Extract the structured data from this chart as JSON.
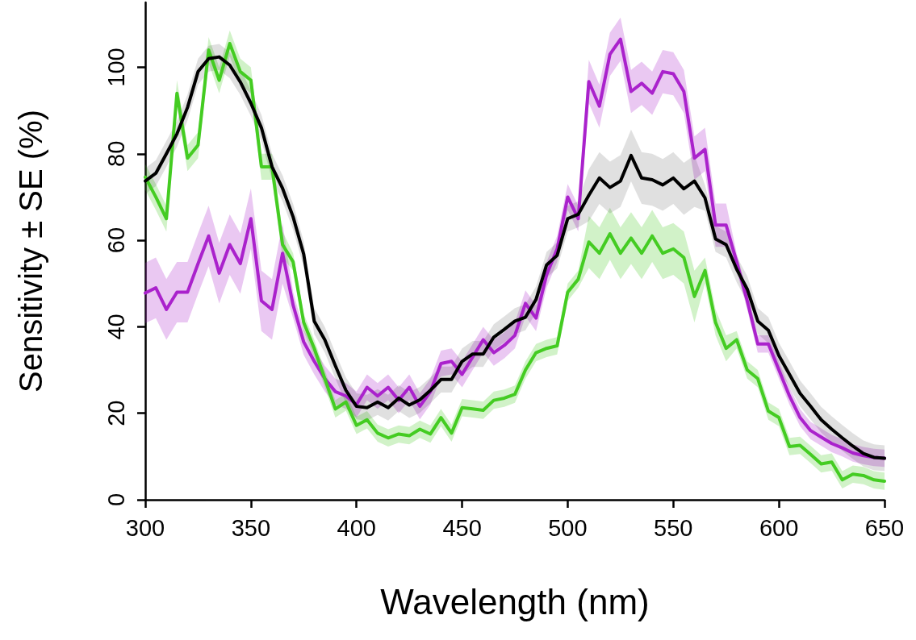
{
  "chart_data": {
    "type": "line",
    "xlabel": "Wavelength (nm)",
    "ylabel": "Sensitivity ± SE (%)",
    "x": [
      300,
      305,
      310,
      315,
      320,
      325,
      330,
      335,
      340,
      345,
      350,
      355,
      360,
      365,
      370,
      375,
      380,
      385,
      390,
      395,
      400,
      405,
      410,
      415,
      420,
      425,
      430,
      435,
      440,
      445,
      450,
      455,
      460,
      465,
      470,
      475,
      480,
      485,
      490,
      495,
      500,
      505,
      510,
      515,
      520,
      525,
      530,
      535,
      540,
      545,
      550,
      555,
      560,
      565,
      570,
      575,
      580,
      585,
      590,
      595,
      600,
      605,
      610,
      615,
      620,
      625,
      630,
      635,
      640,
      645,
      650
    ],
    "xlim": [
      300,
      650
    ],
    "xticks": [
      300,
      350,
      400,
      450,
      500,
      550,
      600,
      650
    ],
    "ylim": [
      0,
      115
    ],
    "yticks": [
      0,
      20,
      40,
      60,
      80,
      100
    ],
    "grid": false,
    "series": [
      {
        "color": "#aa22cc",
        "values": [
          47.8,
          49,
          44,
          48,
          48,
          54.6,
          61,
          52.4,
          59,
          54.6,
          65,
          46,
          44,
          57,
          45,
          36.5,
          32,
          28,
          25,
          24,
          22,
          26,
          24,
          26,
          23,
          26,
          21.6,
          25,
          31.5,
          32,
          29,
          33,
          37,
          34,
          35.7,
          38,
          45.4,
          42,
          52,
          58,
          70,
          65,
          96.7,
          91,
          103,
          106.5,
          94.4,
          96.3,
          94,
          99,
          98.5,
          94.4,
          79,
          81,
          63.5,
          63.5,
          55,
          46,
          36,
          36,
          30,
          24,
          19,
          16,
          14.5,
          13,
          12,
          10.8,
          10.2,
          9.8,
          9.6
        ],
        "lower": [
          40.8,
          42,
          37,
          41,
          41,
          47.6,
          54,
          45.4,
          52,
          47.6,
          58,
          39,
          37,
          50,
          42,
          33.5,
          29,
          25,
          22,
          21,
          19,
          23,
          21,
          23,
          20,
          23,
          18.6,
          22,
          28.5,
          29,
          26,
          30,
          34,
          31,
          32.7,
          35,
          42.4,
          39,
          49,
          55,
          67,
          62,
          91.7,
          86,
          98,
          101.5,
          89.4,
          91.3,
          89,
          94,
          93.5,
          89.4,
          74,
          76,
          58.5,
          58.5,
          53,
          44,
          34,
          34,
          28,
          22,
          17,
          14,
          12.5,
          11,
          10,
          8.8,
          8.2,
          7.8,
          7.6
        ],
        "upper": [
          54.8,
          56,
          51,
          55,
          55,
          61.6,
          68,
          59.4,
          66,
          61.6,
          72,
          53,
          51,
          64,
          48,
          39.5,
          35,
          31,
          28,
          27,
          25,
          29,
          27,
          29,
          26,
          29,
          24.6,
          28,
          34.5,
          35,
          32,
          36,
          40,
          37,
          38.7,
          41,
          48.4,
          45,
          55,
          61,
          73,
          68,
          101.7,
          96,
          108,
          111.5,
          99.4,
          101.3,
          99,
          104,
          103.5,
          99.4,
          84,
          86,
          68.5,
          68.5,
          57,
          48,
          38,
          38,
          32,
          26,
          21,
          18,
          16.5,
          15,
          14,
          12.8,
          12.2,
          11.8,
          11.6
        ]
      },
      {
        "color": "#44cc22",
        "values": [
          74.6,
          70,
          65,
          94,
          79,
          82,
          104,
          97,
          105.5,
          99,
          97,
          77,
          77,
          59,
          55,
          41,
          35,
          28,
          21,
          22.6,
          17.2,
          18.5,
          15.4,
          14.3,
          15.2,
          14.8,
          16.3,
          15.2,
          19,
          15.4,
          21.3,
          21,
          20.7,
          23,
          23.5,
          24.4,
          30,
          34,
          35,
          35.6,
          48,
          51,
          59.6,
          57,
          61.5,
          57,
          60.5,
          57,
          61,
          57,
          58,
          56,
          47,
          53,
          41,
          35,
          37,
          30,
          28,
          20.5,
          19,
          12.3,
          12.6,
          10.5,
          8.3,
          8.7,
          4.6,
          5.9,
          5.6,
          4.6,
          4.3
        ],
        "lower": [
          71.6,
          67,
          62,
          91,
          76,
          79,
          101,
          94,
          102.5,
          96,
          94,
          74,
          74,
          56,
          53,
          39,
          33,
          26,
          19,
          20.6,
          15.2,
          16.5,
          13.4,
          12.3,
          13.2,
          12.8,
          14.3,
          13.2,
          17,
          13.4,
          19.3,
          19,
          18.7,
          21,
          21.5,
          22.4,
          28,
          32,
          33,
          33.6,
          46,
          49,
          53.6,
          51,
          55.5,
          51,
          54.5,
          51,
          55,
          51,
          52,
          50,
          41,
          50,
          38,
          32,
          35,
          28,
          26,
          18.5,
          17,
          10.3,
          10.6,
          8.5,
          6.3,
          6.7,
          2.6,
          3.9,
          3.6,
          2.6,
          2.3
        ],
        "upper": [
          77.6,
          73,
          68,
          97,
          82,
          85,
          107,
          100,
          108.5,
          102,
          100,
          80,
          80,
          62,
          57,
          43,
          37,
          30,
          23,
          24.6,
          19.2,
          20.5,
          17.4,
          16.3,
          17.2,
          16.8,
          18.3,
          17.2,
          21,
          17.4,
          23.3,
          23,
          22.7,
          25,
          25.5,
          26.4,
          32,
          36,
          37,
          37.6,
          50,
          53,
          65.6,
          63,
          67.5,
          63,
          66.5,
          63,
          67,
          63,
          64,
          62,
          53,
          56,
          44,
          38,
          39,
          32,
          30,
          22.5,
          21,
          14.3,
          14.6,
          12.5,
          10.3,
          10.7,
          6.6,
          7.9,
          7.6,
          6.6,
          6.3
        ]
      },
      {
        "color": "#000000",
        "values": [
          73.7,
          75.5,
          80,
          84.6,
          90.7,
          99,
          102,
          102.4,
          100.5,
          96.6,
          91.7,
          86,
          77,
          72,
          65.4,
          56.8,
          41.3,
          37,
          31,
          25.3,
          21.6,
          21.3,
          22.6,
          21.3,
          23.5,
          21.9,
          23.1,
          25.3,
          27.8,
          27.8,
          32,
          33.7,
          33.7,
          37.6,
          39.4,
          41.3,
          42.2,
          46.3,
          54.3,
          56.5,
          65,
          66,
          70.4,
          74.4,
          72.2,
          73.7,
          79.6,
          74.4,
          74,
          72.8,
          74.4,
          71.9,
          73.7,
          69.8,
          60.3,
          59,
          53.3,
          48.7,
          41.3,
          39.2,
          33.3,
          29,
          24.6,
          21.6,
          18.5,
          16.3,
          14.3,
          12.4,
          10.7,
          9.8,
          9.6
        ],
        "lower": [
          70.7,
          72.5,
          77,
          81.6,
          87.7,
          96,
          99,
          99.4,
          97.5,
          93.6,
          88.7,
          83,
          74,
          69,
          62.4,
          53.8,
          38.3,
          34,
          28,
          22.3,
          18.6,
          18.3,
          19.6,
          18.3,
          20.5,
          18.9,
          20.1,
          22.3,
          24.8,
          24.8,
          29,
          30.7,
          30.7,
          34.6,
          36.4,
          38.3,
          39.2,
          43.3,
          51.3,
          53.5,
          62,
          63,
          64.4,
          68.4,
          66.2,
          67.7,
          73.6,
          68.4,
          68,
          66.8,
          68.4,
          65.9,
          67.7,
          66.8,
          57.3,
          56,
          50.3,
          45.7,
          38.3,
          36.2,
          30.3,
          26,
          21.6,
          18.6,
          15.5,
          13.3,
          11.3,
          9.4,
          7.7,
          6.8,
          6.6
        ],
        "upper": [
          76.7,
          78.5,
          83,
          87.6,
          93.7,
          102,
          105,
          105.4,
          103.5,
          99.6,
          94.7,
          89,
          80,
          75,
          68.4,
          59.8,
          44.3,
          40,
          34,
          28.3,
          24.6,
          24.3,
          25.6,
          24.3,
          26.5,
          24.9,
          26.1,
          28.3,
          30.8,
          30.8,
          35,
          36.7,
          36.7,
          40.6,
          42.4,
          44.3,
          45.2,
          49.3,
          57.3,
          59.5,
          68,
          69,
          76.4,
          80.4,
          78.2,
          79.7,
          85.6,
          80.4,
          80,
          78.8,
          80.4,
          77.9,
          79.7,
          72.8,
          63.3,
          62,
          56.3,
          51.7,
          44.3,
          42.2,
          36.3,
          32,
          27.6,
          24.6,
          21.5,
          19.3,
          17.3,
          15.4,
          13.7,
          12.8,
          12.6
        ]
      }
    ]
  }
}
